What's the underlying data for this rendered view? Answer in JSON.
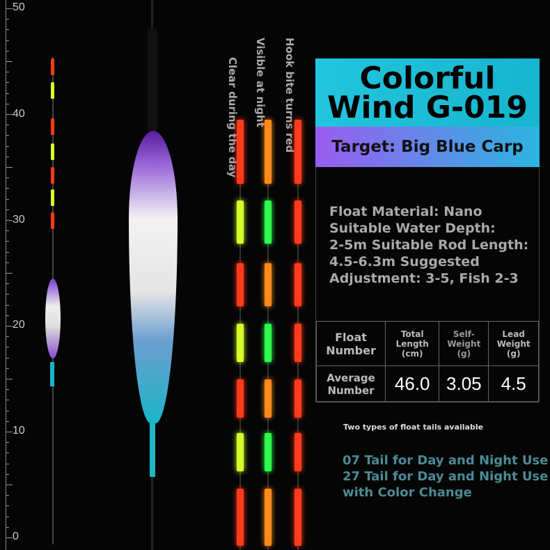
{
  "ruler": {
    "labels": [
      "50",
      "40",
      "30",
      "20",
      "10",
      "0"
    ]
  },
  "tail_labels": [
    "Clear during the day",
    "Visible at night",
    "Hook bite turns red"
  ],
  "product": {
    "title_line1": "Colorful",
    "title_line2": "Wind G-019",
    "target": "Target: Big Blue Carp"
  },
  "description": [
    "Float Material: Nano",
    "Suitable Water Depth:",
    "2-5m Suitable Rod Length:",
    "4.5-6.3m Suggested",
    "Adjustment: 3-5, Fish 2-3"
  ],
  "spec_table": {
    "headers": [
      "Float Number",
      "Total Length (cm)",
      "Self-Weight (g)",
      "Lead Weight (g)"
    ],
    "row": [
      "Average Number",
      "46.0",
      "3.05",
      "4.5"
    ]
  },
  "note": "Two types of float tails available",
  "tails": [
    "07 Tail for Day and Night Use",
    "27 Tail for Day and Night Use",
    "with Color Change"
  ],
  "colors": {
    "title_bg": "#1fbfd8",
    "target_bg_start": "#9a5cf0",
    "tail_red": "#ff3a1a",
    "tail_yellow": "#d6ff2a",
    "tail_green": "#2eff4a",
    "tail_orange": "#ff8a1a"
  }
}
